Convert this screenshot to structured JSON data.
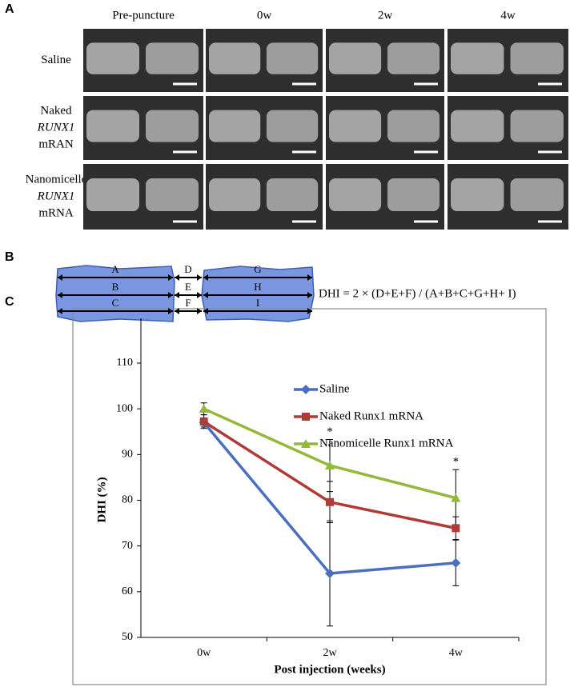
{
  "panel_a": {
    "label": "A",
    "columns": [
      "Pre-puncture",
      "0w",
      "2w",
      "4w"
    ],
    "rows": [
      [
        "Saline"
      ],
      [
        "Naked",
        "RUNX1",
        "mRAN"
      ],
      [
        "Nanomicelle",
        "RUNX1",
        "mRNA"
      ]
    ]
  },
  "panel_b": {
    "label": "B",
    "segments": [
      "A",
      "B",
      "C",
      "D",
      "E",
      "F",
      "G",
      "H",
      "I"
    ],
    "formula": "DHI = 2 × (D+E+F) / (A+B+C+G+H+ I)"
  },
  "panel_c": {
    "label": "C"
  },
  "chart_data": {
    "type": "line",
    "categories": [
      "0w",
      "2w",
      "4w"
    ],
    "x_label": "Post injection (weeks)",
    "y_label": "DHI (%)",
    "ylim": [
      50,
      110
    ],
    "yticks": [
      50,
      60,
      70,
      80,
      90,
      100,
      110
    ],
    "series": [
      {
        "name": "Saline",
        "color": "#4a6fbf",
        "marker": "diamond",
        "values": [
          97,
          64,
          66.3
        ],
        "errors": [
          1,
          11.5,
          5
        ]
      },
      {
        "name": "Naked Runx1 mRNA",
        "color": "#b03a35",
        "marker": "square",
        "values": [
          97.2,
          79.6,
          73.9
        ],
        "errors": [
          1.5,
          4.5,
          2.5
        ]
      },
      {
        "name": "Nanomicelle Runx1 mRNA",
        "color": "#93b83a",
        "marker": "triangle",
        "values": [
          100,
          87.6,
          80.5
        ],
        "errors": [
          1.3,
          5.7,
          6.2
        ]
      }
    ],
    "annotations": [
      {
        "text": "*",
        "x": "2w"
      },
      {
        "text": "*",
        "x": "4w"
      }
    ]
  }
}
